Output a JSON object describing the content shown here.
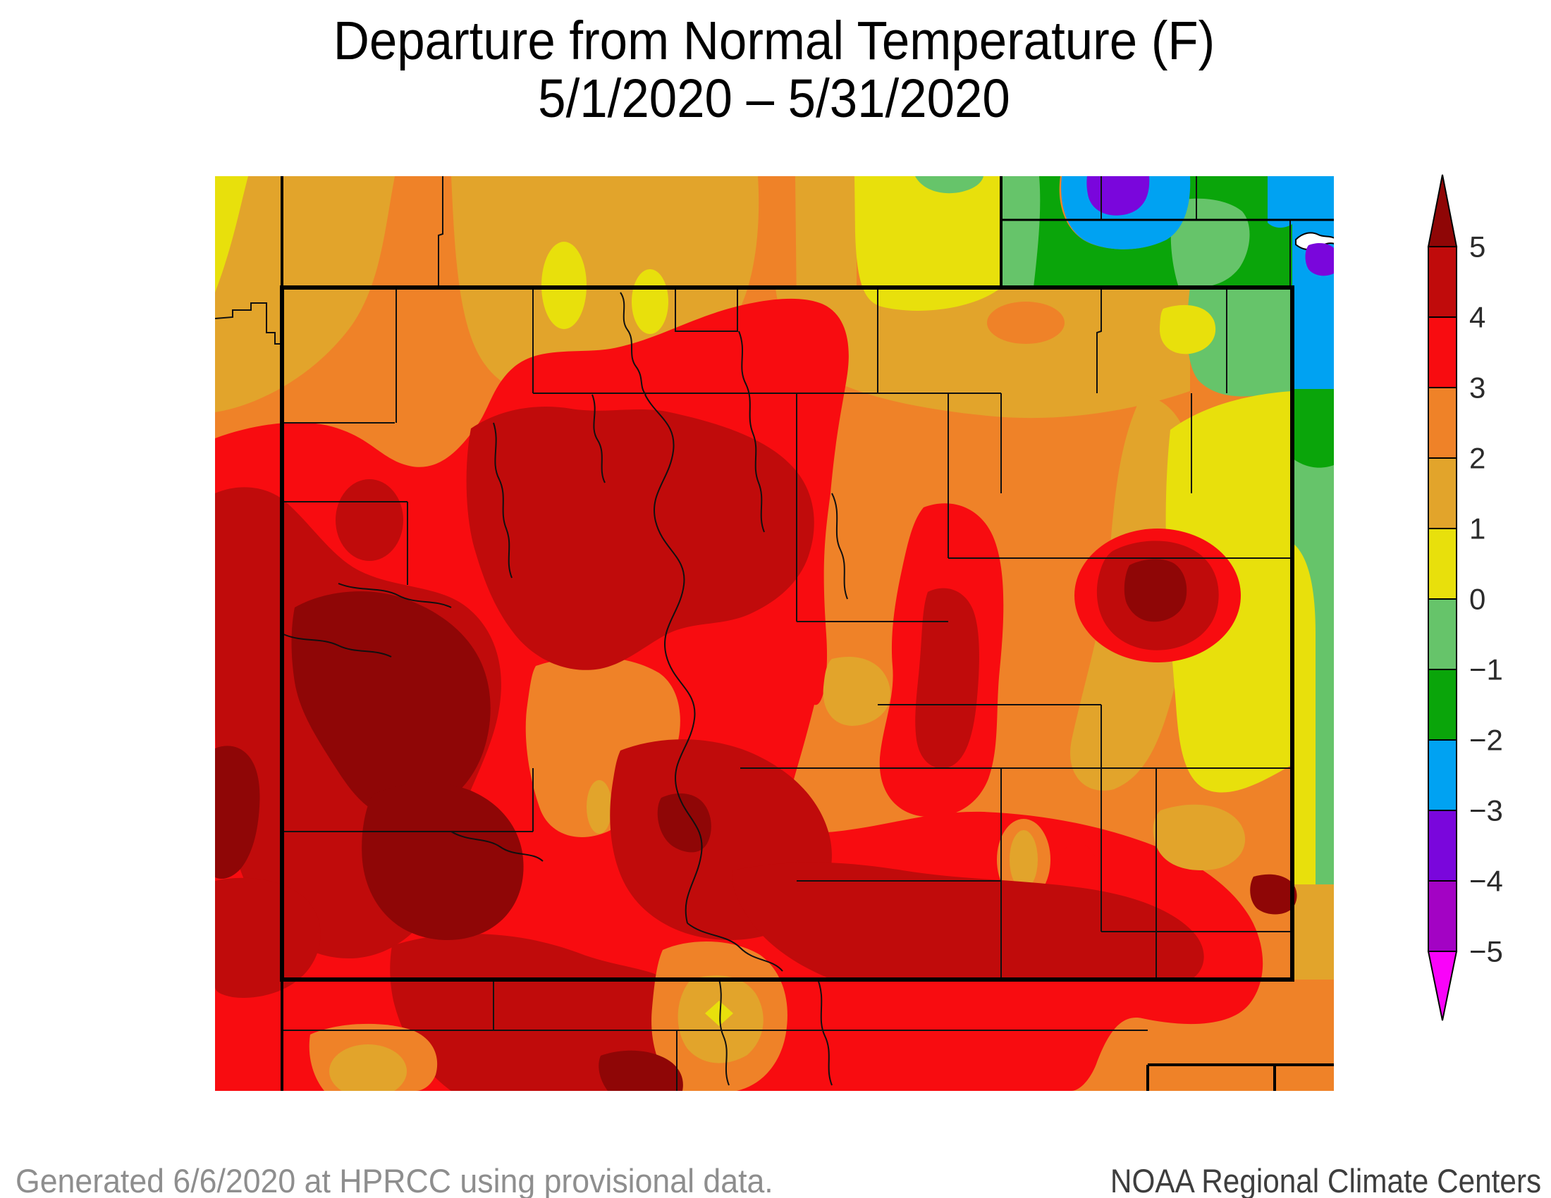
{
  "title": {
    "line1": "Departure from Normal Temperature (F)",
    "line2": "5/1/2020 – 5/31/2020"
  },
  "footer": {
    "left": "Generated 6/6/2020 at HPRCC using provisional data.",
    "right": "NOAA Regional Climate Centers"
  },
  "colorbar": {
    "tick_labels": [
      "5",
      "4",
      "3",
      "2",
      "1",
      "0",
      "−1",
      "−2",
      "−3",
      "−4",
      "−5"
    ],
    "segment_colors_top_to_bottom": [
      "#C00B0B",
      "#F80C10",
      "#EF8228",
      "#E2A42B",
      "#E8E00C",
      "#66C46A",
      "#0AA50A",
      "#00A2F2",
      "#7A06DC",
      "#A303C4"
    ],
    "segment_ranges_top_to_bottom": [
      "4 to 5",
      "3 to 4",
      "2 to 3",
      "1 to 2",
      "0 to 1",
      "-1 to 0",
      "-2 to -1",
      "-3 to -2",
      "-4 to -3",
      "-5 to -4"
    ],
    "above_color": "#8F0606",
    "below_color": "#F903F9",
    "units": "F"
  },
  "map": {
    "kind": "filled contour map of departure from normal temperature",
    "palette": {
      "above_5": "#8F0606",
      "4_to_5": "#C00B0B",
      "3_to_4": "#F80C10",
      "2_to_3": "#EF8228",
      "1_to_2": "#E2A42B",
      "0_to_1": "#E8E00C",
      "neg1_to_0": "#66C46A",
      "neg2_to_neg1": "#0AA50A",
      "neg3_to_neg2": "#00A2F2",
      "neg4_to_neg3": "#7A06DC",
      "neg5_to_neg4": "#A303C4",
      "water_no_data": "#FFFFFF"
    },
    "summary": "Most of the state 3-5+ F above normal (red to dark red cores in west, center and south); 1-3 F above normal on northern border and eastern plains; near-normal to -4 F pocket (yellow, greens, blue, purple) and a white lake feature in the far northeast corner of the plot."
  }
}
